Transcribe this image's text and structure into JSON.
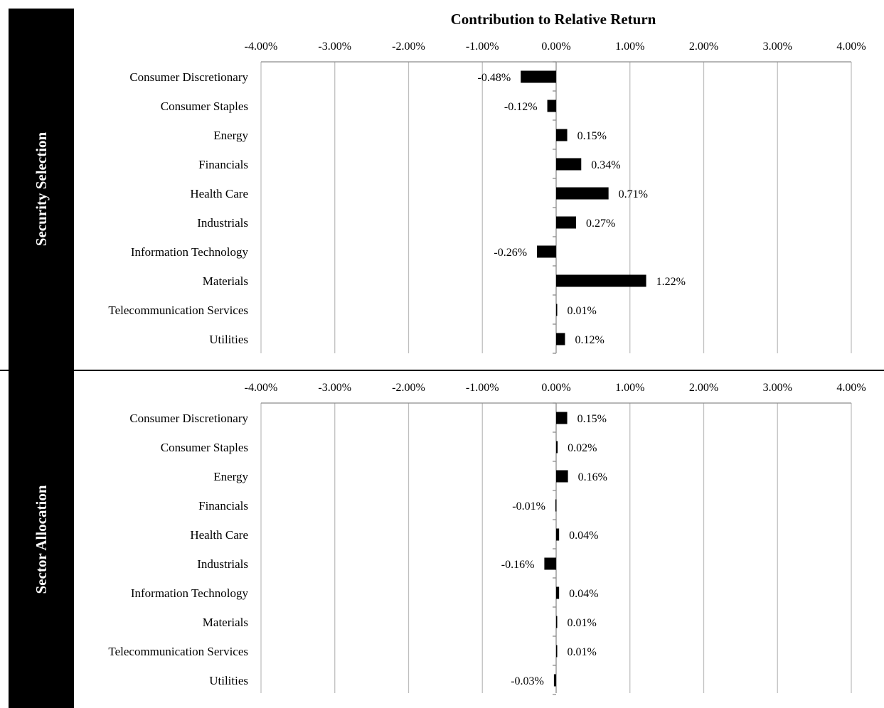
{
  "chart_data": {
    "type": "bar",
    "orientation": "horizontal",
    "title": "Contribution to Relative Return",
    "xlim": [
      -4,
      4
    ],
    "x_ticks": [
      "-4.00%",
      "-3.00%",
      "-2.00%",
      "-1.00%",
      "0.00%",
      "1.00%",
      "2.00%",
      "3.00%",
      "4.00%"
    ],
    "grid": true,
    "panels": [
      {
        "label": "Security Selection",
        "categories": [
          "Consumer Discretionary",
          "Consumer Staples",
          "Energy",
          "Financials",
          "Health Care",
          "Industrials",
          "Information Technology",
          "Materials",
          "Telecommunication Services",
          "Utilities"
        ],
        "values": [
          -0.48,
          -0.12,
          0.15,
          0.34,
          0.71,
          0.27,
          -0.26,
          1.22,
          0.01,
          0.12
        ],
        "data_labels": [
          "-0.48%",
          "-0.12%",
          "0.15%",
          "0.34%",
          "0.71%",
          "0.27%",
          "-0.26%",
          "1.22%",
          "0.01%",
          "0.12%"
        ]
      },
      {
        "label": "Sector Allocation",
        "categories": [
          "Consumer Discretionary",
          "Consumer Staples",
          "Energy",
          "Financials",
          "Health Care",
          "Industrials",
          "Information Technology",
          "Materials",
          "Telecommunication Services",
          "Utilities"
        ],
        "values": [
          0.15,
          0.02,
          0.16,
          -0.01,
          0.04,
          -0.16,
          0.04,
          0.01,
          0.01,
          -0.03
        ],
        "data_labels": [
          "0.15%",
          "0.02%",
          "0.16%",
          "-0.01%",
          "0.04%",
          "-0.16%",
          "0.04%",
          "0.01%",
          "0.01%",
          "-0.03%"
        ]
      }
    ]
  }
}
